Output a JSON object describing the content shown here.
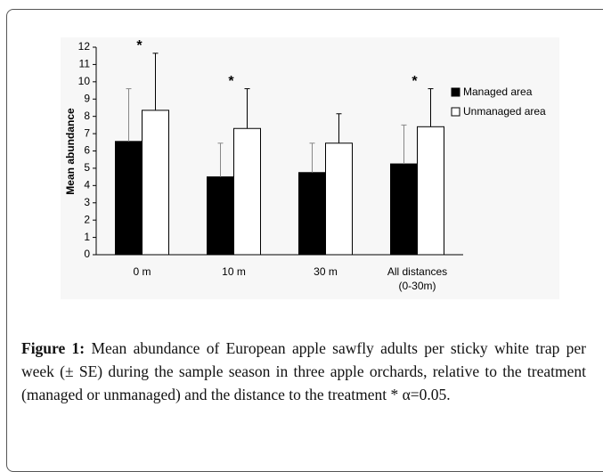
{
  "chart_data": {
    "type": "bar",
    "ylabel": "Mean abundance",
    "categories": [
      "0 m",
      "10 m",
      "30 m",
      "All distances\n(0-30m)"
    ],
    "series": [
      {
        "name": "Managed area",
        "color": "#000000",
        "values": [
          6.55,
          4.5,
          4.75,
          5.25
        ],
        "errors": [
          3.05,
          1.95,
          1.7,
          2.25
        ]
      },
      {
        "name": "Unmanaged area",
        "color": "#ffffff",
        "values": [
          8.35,
          7.3,
          6.45,
          7.4
        ],
        "errors": [
          3.3,
          2.3,
          1.7,
          2.2
        ]
      }
    ],
    "annotations": [
      {
        "text": "*",
        "category": "0 m"
      },
      {
        "text": "*",
        "category": "10 m"
      },
      {
        "text": "*",
        "category": "All distances\n(0-30m)"
      }
    ],
    "ylim": [
      0,
      12
    ],
    "yticks": [
      0,
      1,
      2,
      3,
      4,
      5,
      6,
      7,
      8,
      9,
      10,
      11,
      12
    ],
    "grid": false,
    "legend": "right"
  },
  "caption": {
    "label": "Figure 1:",
    "text": "Mean abundance of European apple sawfly adults per sticky white trap per week (± SE) during the sample season in three apple orchards, relative to the treatment (managed or unmanaged) and the distance to the treatment * α=0.05."
  }
}
